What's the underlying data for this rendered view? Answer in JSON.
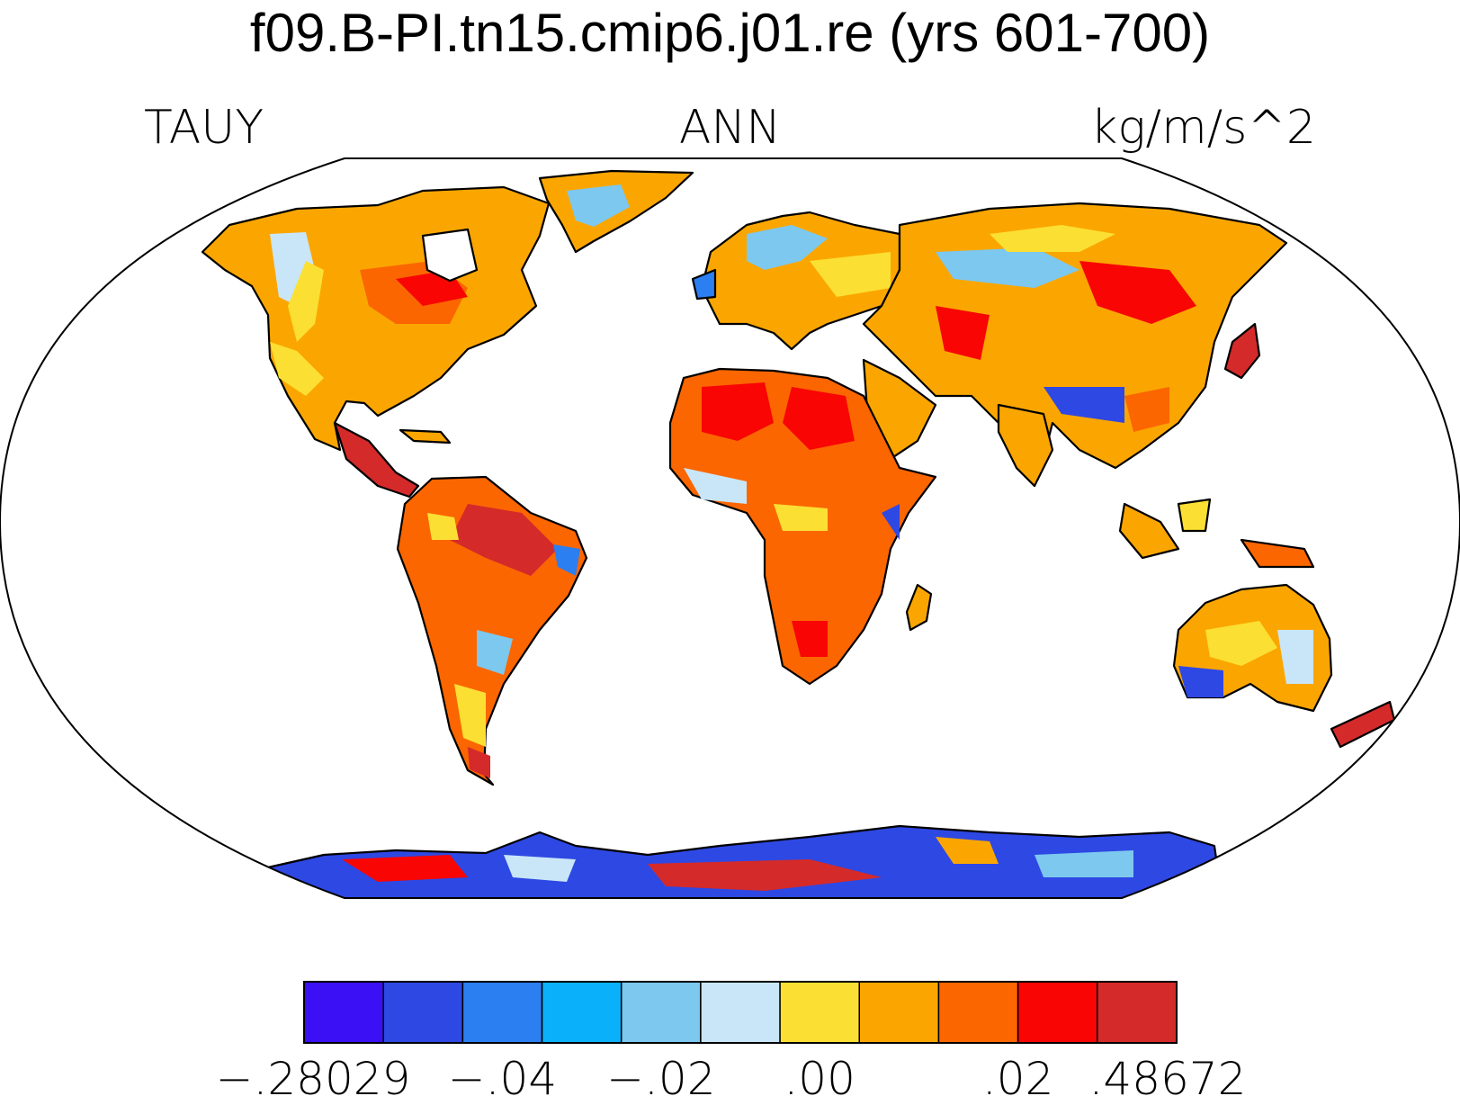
{
  "figure": {
    "title": "f09.B-PI.tn15.cmip6.j01.re (yrs 601-700)",
    "left_label": "TAUY",
    "center_label": "ANN",
    "right_label": "kg/m/s^2"
  },
  "colorbar": {
    "colors": [
      "#3b10f5",
      "#2e48e3",
      "#2c7ff0",
      "#0ab0fa",
      "#7cc8ee",
      "#c8e6f7",
      "#fbe033",
      "#fba600",
      "#fb6600",
      "#f80504",
      "#d52a2a"
    ],
    "tick_labels": [
      {
        "text": "−.28029",
        "boundary": 0
      },
      {
        "text": "−.04",
        "boundary": 2.5
      },
      {
        "text": "−.02",
        "boundary": 4.5
      },
      {
        "text": ".00",
        "boundary": 6.5
      },
      {
        "text": ".02",
        "boundary": 9
      },
      {
        "text": ".48672",
        "boundary": 11
      }
    ]
  }
}
